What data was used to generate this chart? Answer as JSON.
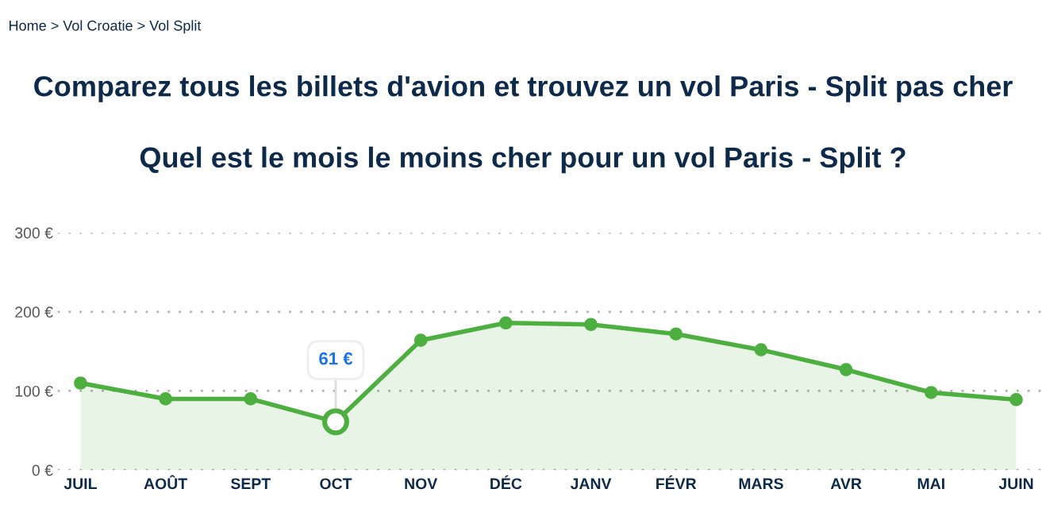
{
  "chart_data": {
    "type": "area",
    "title": "Comparez tous les billets d'avion et trouvez un vol Paris - Split pas cher",
    "subtitle": "Quel est le mois le moins cher pour un vol Paris - Split ?",
    "categories": [
      "JUIL",
      "AOÛT",
      "SEPT",
      "OCT",
      "NOV",
      "DÉC",
      "JANV",
      "FÉVR",
      "MARS",
      "AVR",
      "MAI",
      "JUIN"
    ],
    "series": [
      {
        "color": "#4caf3f",
        "values": [
          110,
          90,
          90,
          61,
          164,
          186,
          184,
          172,
          152,
          127,
          98,
          89
        ]
      }
    ],
    "ylim": [
      0,
      300
    ],
    "yticks": [
      {
        "value": 0,
        "label": "0 €"
      },
      {
        "value": 100,
        "label": "100 €"
      },
      {
        "value": 200,
        "label": "200 €"
      },
      {
        "value": 300,
        "label": "300 €"
      }
    ],
    "grid": "y",
    "marker": "circle",
    "line_style": "solid",
    "annotations": [
      "Home > Vol Croatie > Vol Split",
      {
        "text": "61 €",
        "x": "OCT",
        "y": 61
      }
    ]
  }
}
